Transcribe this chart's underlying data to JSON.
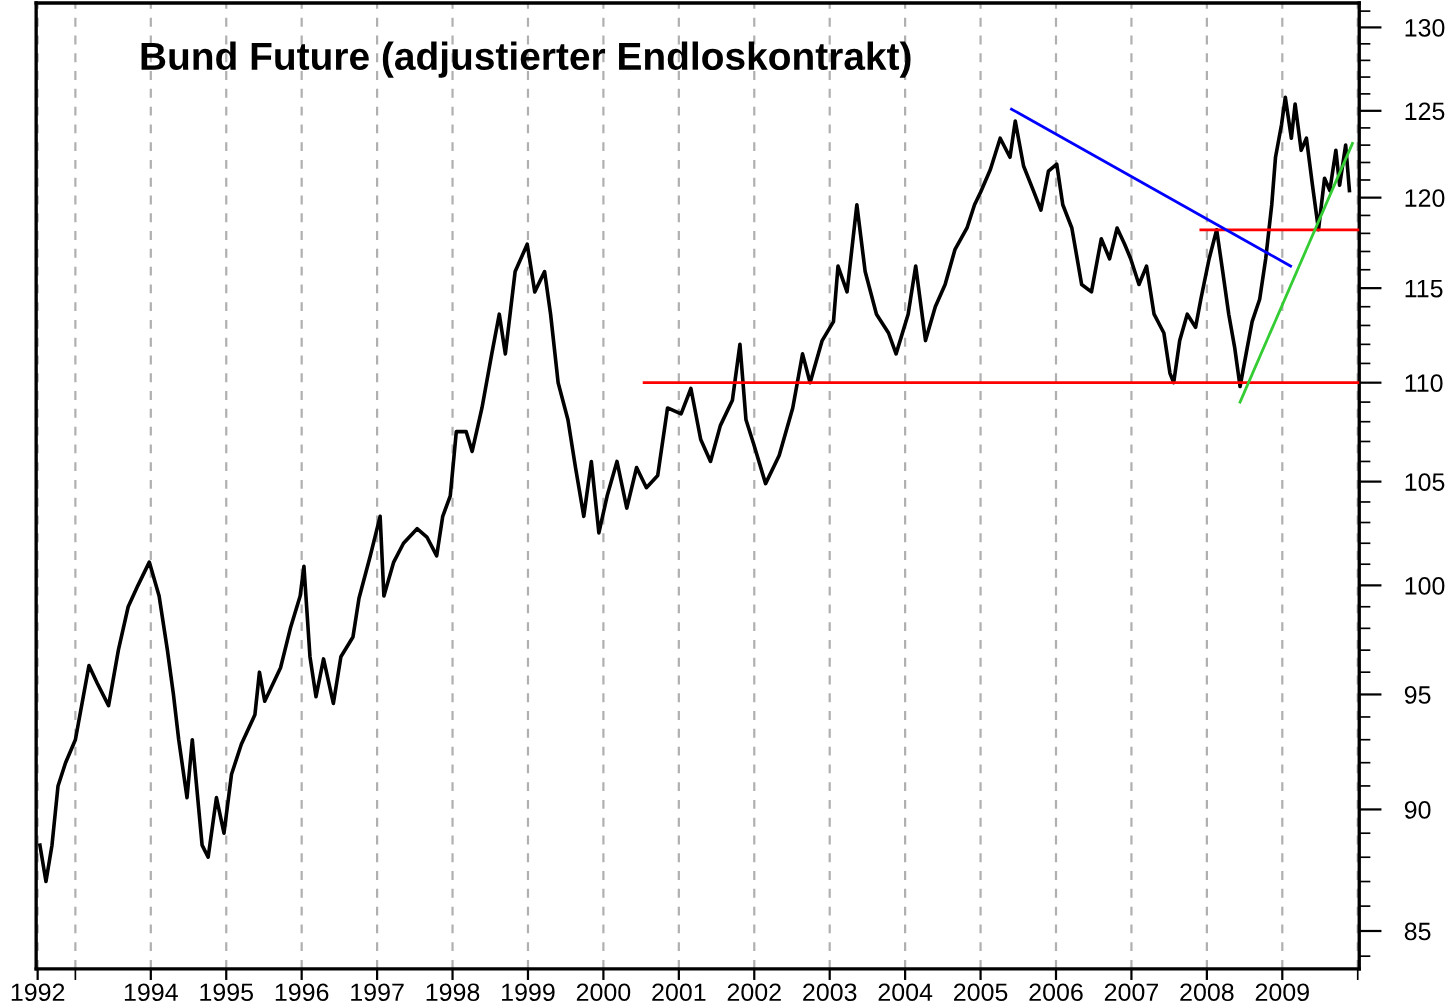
{
  "chart_data": {
    "type": "line",
    "title": "Bund Future (adjustierter Endloskontrakt)",
    "log": "y",
    "grid": "x",
    "marker": "none",
    "line_style": "solid",
    "xlim": [
      1992.48,
      2010.02
    ],
    "ylim": [
      83.5,
      131.5
    ],
    "xticks": [
      {
        "value": 1992.5,
        "label": "1992"
      },
      {
        "value": 1993,
        "label": null
      },
      1994,
      1995,
      1996,
      1997,
      1998,
      1999,
      2000,
      2001,
      2002,
      2003,
      2004,
      2005,
      2006,
      2007,
      2008,
      2009,
      {
        "value": 2010,
        "label": null
      }
    ],
    "yticks": [
      {
        "value": 84,
        "label": null
      },
      85,
      {
        "value": 86,
        "label": null
      },
      {
        "value": 87,
        "label": null
      },
      {
        "value": 88,
        "label": null
      },
      {
        "value": 89,
        "label": null
      },
      90,
      {
        "value": 91,
        "label": null
      },
      {
        "value": 92,
        "label": null
      },
      {
        "value": 93,
        "label": null
      },
      {
        "value": 94,
        "label": null
      },
      95,
      {
        "value": 96,
        "label": null
      },
      {
        "value": 97,
        "label": null
      },
      {
        "value": 98,
        "label": null
      },
      {
        "value": 99,
        "label": null
      },
      100,
      {
        "value": 101,
        "label": null
      },
      {
        "value": 102,
        "label": null
      },
      {
        "value": 103,
        "label": null
      },
      {
        "value": 104,
        "label": null
      },
      105,
      {
        "value": 106,
        "label": null
      },
      {
        "value": 107,
        "label": null
      },
      {
        "value": 108,
        "label": null
      },
      {
        "value": 109,
        "label": null
      },
      110,
      {
        "value": 111,
        "label": null
      },
      {
        "value": 112,
        "label": null
      },
      {
        "value": 113,
        "label": null
      },
      {
        "value": 114,
        "label": null
      },
      115,
      {
        "value": 116,
        "label": null
      },
      {
        "value": 117,
        "label": null
      },
      {
        "value": 118,
        "label": null
      },
      {
        "value": 119,
        "label": null
      },
      120,
      {
        "value": 121,
        "label": null
      },
      {
        "value": 122,
        "label": null
      },
      {
        "value": 123,
        "label": null
      },
      {
        "value": 124,
        "label": null
      },
      125,
      {
        "value": 126,
        "label": null
      },
      {
        "value": 127,
        "label": null
      },
      {
        "value": 128,
        "label": null
      },
      {
        "value": 129,
        "label": null
      },
      130,
      {
        "value": 131,
        "label": null
      }
    ],
    "series": [
      {
        "color": "#000000",
        "x": [
          1992.53,
          1992.61,
          1992.69,
          1992.77,
          1992.87,
          1993.0,
          1993.18,
          1993.29,
          1993.44,
          1993.57,
          1993.7,
          1993.83,
          1993.98,
          1994.11,
          1994.22,
          1994.3,
          1994.37,
          1994.48,
          1994.55,
          1994.68,
          1994.76,
          1994.87,
          1994.97,
          1995.07,
          1995.2,
          1995.38,
          1995.44,
          1995.51,
          1995.72,
          1995.85,
          1995.98,
          1996.03,
          1996.11,
          1996.19,
          1996.29,
          1996.42,
          1996.52,
          1996.68,
          1996.76,
          1996.91,
          1997.04,
          1997.09,
          1997.22,
          1997.35,
          1997.53,
          1997.66,
          1997.79,
          1997.87,
          1997.97,
          1998.05,
          1998.18,
          1998.26,
          1998.39,
          1998.52,
          1998.62,
          1998.7,
          1998.83,
          1998.99,
          1999.09,
          1999.22,
          1999.3,
          1999.4,
          1999.53,
          1999.63,
          1999.74,
          1999.84,
          1999.94,
          2000.05,
          2000.18,
          2000.31,
          2000.44,
          2000.57,
          2000.72,
          2000.85,
          2001.03,
          2001.16,
          2001.29,
          2001.42,
          2001.55,
          2001.71,
          2001.81,
          2001.89,
          2001.99,
          2002.15,
          2002.33,
          2002.51,
          2002.64,
          2002.74,
          2002.9,
          2003.05,
          2003.11,
          2003.23,
          2003.36,
          2003.47,
          2003.62,
          2003.78,
          2003.88,
          2004.04,
          2004.14,
          2004.27,
          2004.4,
          2004.53,
          2004.66,
          2004.82,
          2004.92,
          2005.0,
          2005.13,
          2005.26,
          2005.39,
          2005.46,
          2005.57,
          2005.7,
          2005.8,
          2005.9,
          2006.01,
          2006.09,
          2006.21,
          2006.34,
          2006.47,
          2006.6,
          2006.71,
          2006.81,
          2006.91,
          2006.99,
          2007.1,
          2007.2,
          2007.3,
          2007.43,
          2007.51,
          2007.56,
          2007.64,
          2007.74,
          2007.85,
          2007.92,
          2008.03,
          2008.13,
          2008.21,
          2008.29,
          2008.37,
          2008.44,
          2008.52,
          2008.6,
          2008.7,
          2008.78,
          2008.86,
          2008.91,
          2008.99,
          2009.04,
          2009.12,
          2009.17,
          2009.25,
          2009.32,
          2009.4,
          2009.48,
          2009.56,
          2009.63,
          2009.71,
          2009.76,
          2009.84,
          2009.89
        ],
        "values": [
          88.5,
          87.0,
          88.5,
          91.0,
          92.0,
          93.0,
          96.3,
          95.5,
          94.5,
          97.0,
          99.0,
          100.0,
          101.1,
          99.5,
          97.0,
          95.0,
          93.0,
          90.5,
          93.0,
          88.5,
          88.0,
          90.5,
          89.0,
          91.5,
          92.8,
          94.1,
          96.0,
          94.7,
          96.2,
          98.0,
          99.5,
          100.9,
          96.7,
          94.9,
          96.6,
          94.6,
          96.7,
          97.6,
          99.4,
          101.4,
          103.3,
          99.5,
          101.1,
          102.0,
          102.7,
          102.3,
          101.4,
          103.3,
          104.3,
          107.5,
          107.5,
          106.5,
          108.7,
          111.5,
          113.6,
          111.5,
          115.9,
          117.4,
          114.8,
          115.9,
          113.6,
          110.0,
          108.1,
          105.7,
          103.3,
          106.0,
          102.5,
          104.3,
          106.0,
          103.7,
          105.7,
          104.7,
          105.3,
          108.7,
          108.4,
          109.7,
          107.1,
          106.0,
          107.8,
          109.1,
          112.0,
          108.1,
          106.9,
          104.9,
          106.3,
          108.7,
          111.5,
          110.0,
          112.2,
          113.2,
          116.2,
          114.8,
          119.6,
          115.9,
          113.6,
          112.6,
          111.5,
          113.6,
          116.2,
          112.2,
          114.0,
          115.2,
          117.1,
          118.3,
          119.6,
          120.3,
          121.6,
          123.4,
          122.3,
          124.4,
          121.8,
          120.4,
          119.3,
          121.5,
          121.9,
          119.6,
          118.3,
          115.2,
          114.8,
          117.7,
          116.6,
          118.3,
          117.4,
          116.6,
          115.2,
          116.2,
          113.6,
          112.6,
          110.5,
          110.0,
          112.2,
          113.6,
          112.9,
          114.4,
          116.6,
          118.2,
          115.9,
          113.6,
          111.8,
          109.8,
          111.5,
          113.2,
          114.4,
          116.6,
          119.6,
          122.3,
          124.2,
          125.8,
          123.4,
          125.4,
          122.7,
          123.4,
          120.7,
          118.2,
          121.1,
          120.4,
          122.7,
          120.7,
          123.0,
          120.4
        ]
      },
      {
        "color": "#ff0000",
        "x": [
          2000.54,
          2010.02
        ],
        "values": [
          110.0,
          110.0
        ]
      },
      {
        "color": "#ff0000",
        "x": [
          2007.92,
          2010.02
        ],
        "values": [
          118.2,
          118.2
        ]
      },
      {
        "color": "#0000ff",
        "x": [
          2005.41,
          2009.11
        ],
        "values": [
          125.1,
          116.2
        ]
      },
      {
        "color": "#33cc33",
        "x": [
          2008.44,
          2009.93
        ],
        "values": [
          109.0,
          123.1
        ]
      }
    ]
  }
}
